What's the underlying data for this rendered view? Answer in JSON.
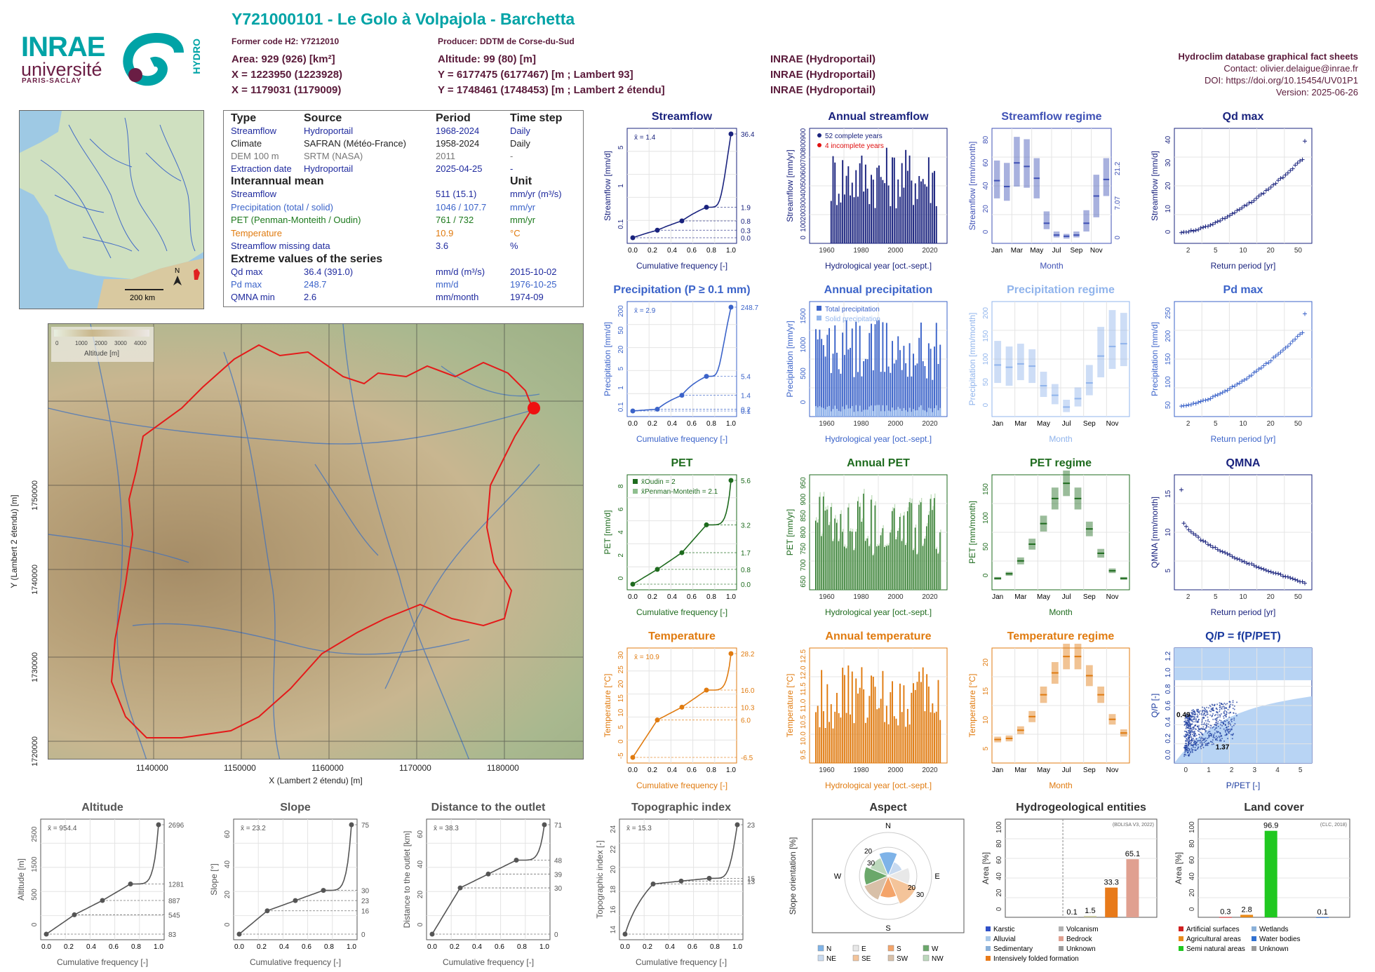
{
  "header": {
    "logo_inrae": "INRAE",
    "logo_univ": "université",
    "logo_ps": "PARIS-SACLAY",
    "logo_hydro": "HYDRO",
    "title": "Y721000101 - Le Golo à Volpajola - Barchetta",
    "former_code": "Former code H2: Y7212010",
    "producer": "Producer: DDTM de Corse-du-Sud",
    "area": "Area: 929 (926) [km²]",
    "altitude": "Altitude: 99 (80) [m]",
    "x93": "X = 1223950 (1223928)",
    "y93": "Y = 6177475 (6177467) [m ; Lambert 93]",
    "x2e": "X = 1179031 (1179009)",
    "y2e": "Y = 1748461 (1748453) [m ; Lambert 2 étendu]",
    "src1": "INRAE (Hydroportail)",
    "src2": "INRAE (Hydroportail)",
    "src3": "INRAE (Hydroportail)",
    "db_title": "Hydroclim database graphical fact sheets",
    "contact": "Contact: olivier.delaigue@inrae.fr",
    "doi": "DOI: https://doi.org/10.15454/UV01P1",
    "version": "Version: 2025-06-26"
  },
  "info": {
    "h_type": "Type",
    "h_source": "Source",
    "h_period": "Period",
    "h_step": "Time step",
    "rows": [
      {
        "a": "Streamflow",
        "b": "Hydroportail",
        "c": "1968-2024",
        "d": "Daily",
        "color": "#1f2a9e"
      },
      {
        "a": "Climate",
        "b": "SAFRAN (Météo-France)",
        "c": "1958-2024",
        "d": "Daily",
        "color": "#222222"
      },
      {
        "a": "DEM 100 m",
        "b": "SRTM (NASA)",
        "c": "2011",
        "d": "-",
        "color": "#777777"
      },
      {
        "a": "Extraction date",
        "b": "Hydroportail",
        "c": "2025-04-25",
        "d": "-",
        "color": "#1f2a9e"
      }
    ],
    "h_mean": "Interannual mean",
    "h_unit": "Unit",
    "mean": [
      {
        "a": "Streamflow",
        "c": "511 (15.1)",
        "d": "mm/yr (m³/s)",
        "color": "#1f2a9e"
      },
      {
        "a": "Precipitation (total / solid)",
        "c": "1046 / 107.7",
        "d": "mm/yr",
        "color": "#3b63c9"
      },
      {
        "a": "PET (Penman-Monteith / Oudin)",
        "c": "761 / 732",
        "d": "mm/yr",
        "color": "#1e7a1e"
      },
      {
        "a": "Temperature",
        "c": "10.9",
        "d": "°C",
        "color": "#e07b10"
      },
      {
        "a": "Streamflow missing data",
        "c": "3.6",
        "d": "%",
        "color": "#1f2a9e"
      }
    ],
    "h_extreme": "Extreme values of the series",
    "extreme": [
      {
        "a": "Qd max",
        "b": "36.4 (391.0)",
        "c": "mm/d (m³/s)",
        "d": "2015-10-02",
        "color": "#1f2a9e"
      },
      {
        "a": "Pd max",
        "b": "248.7",
        "c": "mm/d",
        "d": "1976-10-25",
        "color": "#3b63c9"
      },
      {
        "a": "QMNA min",
        "b": "2.6",
        "c": "mm/month",
        "d": "1974-09",
        "color": "#1f2a9e"
      }
    ]
  },
  "maps": {
    "scale": "200 km",
    "north": "N",
    "legend": "Altitude [m]",
    "legend_ticks": [
      "0",
      "1000",
      "2000",
      "3000",
      "4000"
    ],
    "xlabel": "X (Lambert 2 étendu) [m]",
    "ylabel": "Y (Lambert 2 étendu) [m]",
    "xticks": [
      "1140000",
      "1150000",
      "1160000",
      "1170000",
      "1180000"
    ],
    "yticks": [
      "1720000",
      "1730000",
      "1740000",
      "1750000"
    ]
  },
  "chart_data": [
    {
      "id": "streamflow",
      "type": "line",
      "title": "Streamflow",
      "color": "#1a237e",
      "xlabel": "Cumulative frequency [-]",
      "ylabel": "Streamflow [mm/d]",
      "mean": "x̄ = 1.4",
      "yticks": [
        "0.1",
        "1",
        "5"
      ],
      "right_ticks": [
        "36.4",
        "1.9",
        "0.8",
        "0.3",
        "0.0"
      ],
      "x": [
        0,
        0.25,
        0.5,
        0.75,
        1.0
      ],
      "y": [
        0.0,
        0.3,
        0.8,
        1.9,
        36.4
      ]
    },
    {
      "id": "annual_streamflow",
      "type": "bar",
      "title": "Annual streamflow",
      "color": "#1a237e",
      "xlabel": "Hydrological year [oct.-sept.]",
      "ylabel": "Streamflow [mm/yr]",
      "ylim": [
        0,
        900
      ],
      "yticks": [
        "0",
        "100",
        "200",
        "300",
        "400",
        "500",
        "600",
        "700",
        "800",
        "900"
      ],
      "xticks": [
        "1960",
        "1980",
        "2000",
        "2020"
      ],
      "legend": [
        "52 complete years",
        "4 incomplete years"
      ]
    },
    {
      "id": "streamflow_regime",
      "type": "bar",
      "title": "Streamflow regime",
      "color": "#3f51b5",
      "xlabel": "Month",
      "ylabel": "Streamflow [mm/month]",
      "yticks": [
        "0",
        "20",
        "40",
        "60",
        "80"
      ],
      "right_ticks": [
        "21.2",
        "7.07",
        "0"
      ],
      "months": [
        "Jan",
        "Feb",
        "Mar",
        "Apr",
        "May",
        "Jun",
        "Jul",
        "Aug",
        "Sep",
        "Oct",
        "Nov",
        "Dec"
      ],
      "month_ticks": [
        "Jan",
        "Mar",
        "May",
        "Jul",
        "Sep",
        "Nov"
      ],
      "median": [
        53,
        48,
        68,
        65,
        55,
        17,
        7,
        6,
        7,
        17,
        40,
        54
      ],
      "q25": [
        38,
        36,
        48,
        47,
        38,
        12,
        5,
        4,
        5,
        10,
        22,
        40
      ],
      "q75": [
        70,
        68,
        90,
        88,
        72,
        27,
        10,
        8,
        10,
        28,
        58,
        72
      ]
    },
    {
      "id": "qd_max",
      "type": "scatter",
      "title": "Qd max",
      "color": "#1a237e",
      "xlabel": "Return period [yr]",
      "ylabel": "Streamflow [mm/d]",
      "yticks": [
        "0",
        "10",
        "20",
        "30",
        "40"
      ],
      "xticks": [
        "2",
        "5",
        "10",
        "20",
        "50"
      ]
    },
    {
      "id": "precipitation",
      "type": "line",
      "title": "Precipitation (P ≥ 0.1 mm)",
      "color": "#3b63c9",
      "xlabel": "Cumulative frequency [-]",
      "ylabel": "Precipitation [mm/d]",
      "mean": "x̄ = 2.9",
      "yticks": [
        "0.1",
        "1",
        "5",
        "20",
        "50",
        "200"
      ],
      "right_ticks": [
        "248.7",
        "5.4",
        "1.4",
        "0.2",
        "0.1"
      ],
      "x": [
        0,
        0.25,
        0.5,
        0.75,
        1.0
      ],
      "y": [
        0.1,
        0.2,
        1.4,
        5.4,
        248.7
      ]
    },
    {
      "id": "annual_precipitation",
      "type": "bar",
      "title": "Annual precipitation",
      "color": "#3b63c9",
      "xlabel": "Hydrological year [oct.-sept.]",
      "ylabel": "Precipitation [mm/yr]",
      "ylim": [
        0,
        1500
      ],
      "yticks": [
        "0",
        "500",
        "1000",
        "1500"
      ],
      "xticks": [
        "1960",
        "1980",
        "2000",
        "2020"
      ],
      "legend": [
        "Total precipitation",
        "Solid precipitation"
      ]
    },
    {
      "id": "precipitation_regime",
      "type": "bar",
      "title": "Precipitation regime",
      "color": "#90b4ec",
      "xlabel": "Month",
      "ylabel": "Precipitation [mm/month]",
      "yticks": [
        "0",
        "50",
        "100",
        "150",
        "200"
      ],
      "months": [
        "Jan",
        "Feb",
        "Mar",
        "Apr",
        "May",
        "Jun",
        "Jul",
        "Aug",
        "Sep",
        "Oct",
        "Nov",
        "Dec"
      ],
      "month_ticks": [
        "Jan",
        "Mar",
        "May",
        "Jul",
        "Sep",
        "Nov"
      ],
      "median": [
        92,
        88,
        94,
        90,
        55,
        38,
        17,
        32,
        60,
        108,
        125,
        130
      ],
      "q25": [
        60,
        55,
        65,
        60,
        35,
        22,
        8,
        18,
        38,
        70,
        85,
        90
      ],
      "q75": [
        135,
        125,
        130,
        120,
        80,
        58,
        30,
        52,
        92,
        160,
        190,
        185
      ]
    },
    {
      "id": "pd_max",
      "type": "scatter",
      "title": "Pd max",
      "color": "#3b63c9",
      "xlabel": "Return period [yr]",
      "ylabel": "Precipitation [mm/d]",
      "yticks": [
        "50",
        "100",
        "150",
        "200",
        "250"
      ],
      "xticks": [
        "2",
        "5",
        "10",
        "20",
        "50"
      ]
    },
    {
      "id": "pet",
      "type": "line",
      "title": "PET",
      "color": "#1e6b1e",
      "xlabel": "Cumulative frequency [-]",
      "ylabel": "PET [mm/d]",
      "legend": [
        "x̄Oudin = 2",
        "x̄Penman-Monteith = 2.1"
      ],
      "yticks": [
        "0",
        "2",
        "4",
        "6",
        "8"
      ],
      "right_ticks": [
        "5.6",
        "3.2",
        "1.7",
        "0.8",
        "0.0"
      ],
      "x": [
        0,
        0.25,
        0.5,
        0.75,
        1.0
      ],
      "y": [
        0.0,
        0.8,
        1.7,
        3.2,
        5.6
      ]
    },
    {
      "id": "annual_pet",
      "type": "bar",
      "title": "Annual PET",
      "color": "#1e6b1e",
      "xlabel": "Hydrological year [oct.-sept.]",
      "ylabel": "PET [mm/yr]",
      "ylim": [
        650,
        950
      ],
      "yticks": [
        "650",
        "700",
        "750",
        "800",
        "850",
        "900",
        "950"
      ],
      "xticks": [
        "1960",
        "1980",
        "2000",
        "2020"
      ]
    },
    {
      "id": "pet_regime",
      "type": "bar",
      "title": "PET regime",
      "color": "#1e6b1e",
      "xlabel": "Month",
      "ylabel": "PET [mm/month]",
      "yticks": [
        "0",
        "50",
        "100",
        "150"
      ],
      "months": [
        "Jan",
        "Feb",
        "Mar",
        "Apr",
        "May",
        "Jun",
        "Jul",
        "Aug",
        "Sep",
        "Oct",
        "Nov",
        "Dec"
      ],
      "month_ticks": [
        "Jan",
        "Mar",
        "May",
        "Jul",
        "Sep",
        "Nov"
      ],
      "median": [
        15,
        21,
        38,
        60,
        87,
        120,
        140,
        120,
        80,
        48,
        25,
        15
      ]
    },
    {
      "id": "qmna",
      "type": "scatter",
      "title": "QMNA",
      "color": "#1a237e",
      "xlabel": "Return period [yr]",
      "ylabel": "QMNA [mm/month]",
      "yticks": [
        "5",
        "10",
        "15"
      ],
      "xticks": [
        "2",
        "5",
        "10",
        "20",
        "50"
      ]
    },
    {
      "id": "temperature",
      "type": "line",
      "title": "Temperature",
      "color": "#e07b10",
      "xlabel": "Cumulative frequency [-]",
      "ylabel": "Temperature [°C]",
      "mean": "x̄ = 10.9",
      "yticks": [
        "-5",
        "0",
        "5",
        "10",
        "15",
        "20",
        "25",
        "30"
      ],
      "right_ticks": [
        "28.2",
        "16.0",
        "10.3",
        "6.0",
        "-6.5"
      ],
      "x": [
        0,
        0.25,
        0.5,
        0.75,
        1.0
      ],
      "y": [
        -6.5,
        6.0,
        10.3,
        16.0,
        28.2
      ]
    },
    {
      "id": "annual_temperature",
      "type": "bar",
      "title": "Annual temperature",
      "color": "#e07b10",
      "xlabel": "Hydrological year [oct.-sept.]",
      "ylabel": "Temperature [°C]",
      "ylim": [
        9.5,
        12.5
      ],
      "yticks": [
        "9.5",
        "10.0",
        "10.5",
        "11.0",
        "11.5",
        "12.0",
        "12.5"
      ],
      "xticks": [
        "1960",
        "1980",
        "2000",
        "2020"
      ]
    },
    {
      "id": "temperature_regime",
      "type": "bar",
      "title": "Temperature regime",
      "color": "#e07b10",
      "xlabel": "Month",
      "ylabel": "Temperature [°C]",
      "yticks": [
        "5",
        "10",
        "15",
        "20"
      ],
      "months": [
        "Jan",
        "Feb",
        "Mar",
        "Apr",
        "May",
        "Jun",
        "Jul",
        "Aug",
        "Sep",
        "Oct",
        "Nov",
        "Dec"
      ],
      "month_ticks": [
        "Jan",
        "Mar",
        "May",
        "Jul",
        "Sep",
        "Nov"
      ],
      "median": [
        4.3,
        4.5,
        6.0,
        8.5,
        12.5,
        16.5,
        19.5,
        19.5,
        16.0,
        12.5,
        8.0,
        5.5
      ]
    },
    {
      "id": "qp_ppet",
      "type": "scatter",
      "title": "Q/P = f(P/PET)",
      "color": "#1a3a9e",
      "xlabel": "P/PET [-]",
      "ylabel": "Q/P [-]",
      "xticks": [
        "0",
        "1",
        "2",
        "3",
        "4",
        "5"
      ],
      "yticks": [
        "0.0",
        "0.2",
        "0.4",
        "0.6",
        "0.8",
        "1.0",
        "1.2"
      ],
      "labels": [
        "0.49",
        "1.37"
      ]
    },
    {
      "id": "altitude",
      "type": "line",
      "title": "Altitude",
      "color": "#555555",
      "xlabel": "Cumulative frequency [-]",
      "ylabel": "Altitude [m]",
      "mean": "x̄ = 954.4",
      "yticks": [
        "0",
        "500",
        "1500",
        "2500"
      ],
      "right_ticks": [
        "2696",
        "1281",
        "887",
        "545",
        "83"
      ],
      "x": [
        0,
        0.25,
        0.5,
        0.75,
        1.0
      ],
      "y": [
        83,
        545,
        887,
        1281,
        2696
      ]
    },
    {
      "id": "slope",
      "type": "line",
      "title": "Slope",
      "color": "#555555",
      "xlabel": "Cumulative frequency [-]",
      "ylabel": "Slope [°]",
      "mean": "x̄ = 23.2",
      "yticks": [
        "0",
        "20",
        "40",
        "60"
      ],
      "right_ticks": [
        "75",
        "30",
        "23",
        "16",
        "0"
      ],
      "x": [
        0,
        0.25,
        0.5,
        0.75,
        1.0
      ],
      "y": [
        0,
        16,
        23,
        30,
        75
      ]
    },
    {
      "id": "distance",
      "type": "line",
      "title": "Distance to the outlet",
      "color": "#555555",
      "xlabel": "Cumulative frequency [-]",
      "ylabel": "Distance to the outlet [km]",
      "mean": "x̄ = 38.3",
      "yticks": [
        "0",
        "20",
        "40",
        "60"
      ],
      "right_ticks": [
        "71",
        "48",
        "39",
        "30",
        "0"
      ],
      "x": [
        0,
        0.25,
        0.5,
        0.75,
        1.0
      ],
      "y": [
        0,
        30,
        39,
        48,
        71
      ]
    },
    {
      "id": "topo",
      "type": "line",
      "title": "Topographic index",
      "color": "#555555",
      "xlabel": "Cumulative frequency [-]",
      "ylabel": "Topographic index [-]",
      "mean": "x̄ = 15.3",
      "yticks": [
        "14",
        "16",
        "18",
        "20",
        "22",
        "24"
      ],
      "right_ticks": [
        "23",
        "15",
        "13"
      ],
      "x": [
        0,
        0.25,
        0.5,
        0.75,
        1.0
      ],
      "y": [
        13,
        15,
        15.2,
        15.4,
        23
      ]
    },
    {
      "id": "aspect",
      "type": "pie",
      "title": "Aspect",
      "ylabel": "Slope orientation [%]",
      "directions": [
        "N",
        "E",
        "S",
        "W"
      ],
      "rings": [
        "20",
        "30",
        "20",
        "30"
      ],
      "legend": [
        "N",
        "E",
        "S",
        "W",
        "NE",
        "SE",
        "SW",
        "NW"
      ],
      "colors": [
        "#7eb3e8",
        "#e8e8e8",
        "#f4a46a",
        "#6aa86a",
        "#c8daf0",
        "#f4c49a",
        "#d8c0a8",
        "#bcd8bc"
      ]
    },
    {
      "id": "hydrogeology",
      "type": "bar",
      "title": "Hydrogeological entities",
      "note": "(BDLISA V3, 2022)",
      "ylabel": "Area [%]",
      "yticks": [
        "0",
        "20",
        "40",
        "60",
        "80",
        "100"
      ],
      "values": [
        0.1,
        1.5,
        33.3,
        65.1
      ],
      "value_labels": [
        "0.1",
        "1.5",
        "33.3",
        "65.1"
      ],
      "colors": [
        "#aaaaaa",
        "#c8c8a0",
        "#e87a1a",
        "#e0a090"
      ],
      "legend": [
        "Karstic",
        "Volcanism",
        "Alluvial",
        "Bedrock",
        "Sedimentary",
        "Unknown",
        "Intensively folded formation"
      ],
      "legend_colors": [
        "#3050c8",
        "#b0b0b0",
        "#a8c8e8",
        "#e0a090",
        "#8ab0d8",
        "#999999",
        "#e87a1a"
      ]
    },
    {
      "id": "landcover",
      "type": "bar",
      "title": "Land cover",
      "note": "(CLC, 2018)",
      "ylabel": "Area [%]",
      "yticks": [
        "0",
        "20",
        "40",
        "60",
        "80",
        "100"
      ],
      "values": [
        0.3,
        2.8,
        96.9,
        0.1
      ],
      "value_labels": [
        "0.3",
        "2.8",
        "96.9",
        "0.1"
      ],
      "colors": [
        "#d02020",
        "#e88a1a",
        "#20c820",
        "#3070d0"
      ],
      "legend": [
        "Artificial surfaces",
        "Wetlands",
        "Agricultural areas",
        "Water bodies",
        "Semi natural areas",
        "Unknown"
      ],
      "legend_colors": [
        "#d02020",
        "#8ab0d8",
        "#e88a1a",
        "#3070d0",
        "#20c820",
        "#999999"
      ]
    }
  ]
}
